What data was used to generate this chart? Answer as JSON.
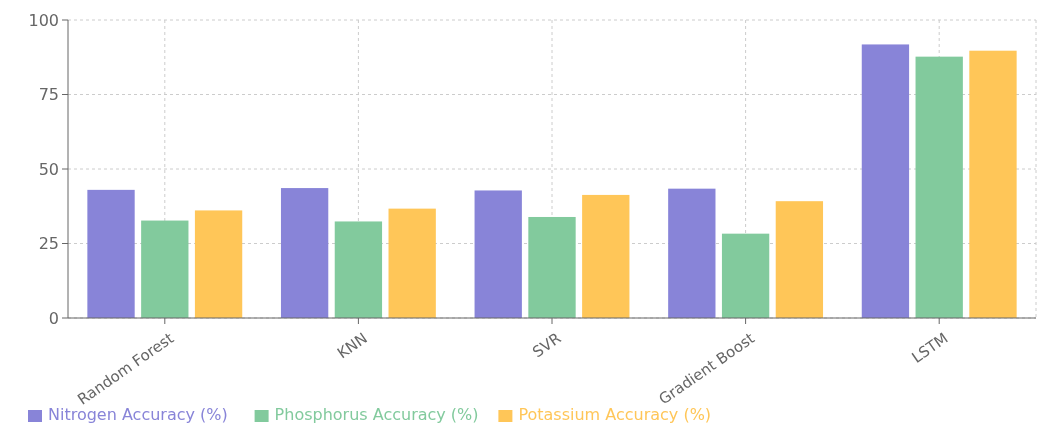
{
  "chart_data": {
    "type": "bar",
    "categories": [
      "Random Forest",
      "KNN",
      "SVR",
      "Gradient Boost",
      "LSTM"
    ],
    "series": [
      {
        "name": "Nitrogen Accuracy (%)",
        "color": "#8884d8",
        "values": [
          43,
          43.6,
          42.8,
          43.4,
          91.8
        ]
      },
      {
        "name": "Phosphorus Accuracy (%)",
        "color": "#82ca9d",
        "values": [
          32.7,
          32.4,
          33.9,
          28.3,
          87.7
        ]
      },
      {
        "name": "Potassium Accuracy (%)",
        "color": "#ffc658",
        "values": [
          36.1,
          36.7,
          41.3,
          39.2,
          89.7
        ]
      }
    ],
    "ylim": [
      0,
      100
    ],
    "yticks": [
      0,
      25,
      50,
      75,
      100
    ],
    "grid": true,
    "legend": "bottom"
  }
}
